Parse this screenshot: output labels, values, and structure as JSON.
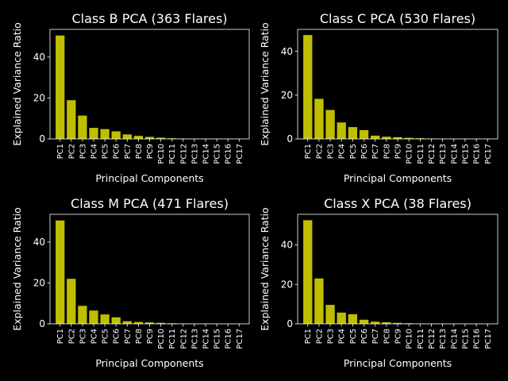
{
  "figure": {
    "background": "#000000",
    "bar_color": "#bfbf00",
    "text_color": "#ffffff"
  },
  "chart_data": [
    {
      "type": "bar",
      "title": "Class B PCA (363 Flares)",
      "xlabel": "Principal Components",
      "ylabel": "Explained Variance Ratio",
      "categories": [
        "PC1",
        "PC2",
        "PC3",
        "PC4",
        "PC5",
        "PC6",
        "PC7",
        "PC8",
        "PC9",
        "PC10",
        "PC11",
        "PC12",
        "PC13",
        "PC14",
        "PC15",
        "PC16",
        "PC17"
      ],
      "values": [
        50.5,
        18.9,
        11.4,
        5.4,
        4.8,
        3.7,
        2.2,
        1.5,
        1.0,
        0.6,
        0.3,
        0.2,
        0.1,
        0.1,
        0.1,
        0.05,
        0.03
      ],
      "ylim": [
        0,
        53.5
      ],
      "yticks": [
        0,
        20,
        40
      ],
      "grid": false
    },
    {
      "type": "bar",
      "title": "Class C PCA (530 Flares)",
      "xlabel": "Principal Components",
      "ylabel": "Explained Variance Ratio",
      "categories": [
        "PC1",
        "PC2",
        "PC3",
        "PC4",
        "PC5",
        "PC6",
        "PC7",
        "PC8",
        "PC9",
        "PC10",
        "PC11",
        "PC12",
        "PC13",
        "PC14",
        "PC15",
        "PC16",
        "PC17"
      ],
      "values": [
        47.4,
        18.3,
        13.2,
        7.5,
        5.4,
        4.0,
        1.5,
        1.0,
        0.8,
        0.5,
        0.3,
        0.2,
        0.1,
        0.1,
        0.1,
        0.05,
        0.03
      ],
      "ylim": [
        0,
        50
      ],
      "yticks": [
        0,
        20,
        40
      ],
      "grid": false
    },
    {
      "type": "bar",
      "title": "Class M PCA (471 Flares)",
      "xlabel": "Principal Components",
      "ylabel": "Explained Variance Ratio",
      "categories": [
        "PC1",
        "PC2",
        "PC3",
        "PC4",
        "PC5",
        "PC6",
        "PC7",
        "PC8",
        "PC9",
        "PC10",
        "PC11",
        "PC12",
        "PC13",
        "PC14",
        "PC15",
        "PC16",
        "PC17"
      ],
      "values": [
        50.5,
        22.0,
        8.8,
        6.5,
        4.6,
        3.2,
        1.3,
        0.9,
        0.7,
        0.5,
        0.3,
        0.2,
        0.1,
        0.1,
        0.1,
        0.05,
        0.03
      ],
      "ylim": [
        0,
        53.5
      ],
      "yticks": [
        0,
        20,
        40
      ],
      "grid": false
    },
    {
      "type": "bar",
      "title": "Class X PCA (38 Flares)",
      "xlabel": "Principal Components",
      "ylabel": "Explained Variance Ratio",
      "categories": [
        "PC1",
        "PC2",
        "PC3",
        "PC4",
        "PC5",
        "PC6",
        "PC7",
        "PC8",
        "PC9",
        "PC10",
        "PC11",
        "PC12",
        "PC13",
        "PC14",
        "PC15",
        "PC16",
        "PC17"
      ],
      "values": [
        52.5,
        23.0,
        9.6,
        5.7,
        4.9,
        2.1,
        1.1,
        0.8,
        0.5,
        0.3,
        0.2,
        0.1,
        0.05,
        0.05,
        0.03,
        0.02,
        0.01
      ],
      "ylim": [
        0,
        55.5
      ],
      "yticks": [
        0,
        20,
        40
      ],
      "grid": false
    }
  ]
}
